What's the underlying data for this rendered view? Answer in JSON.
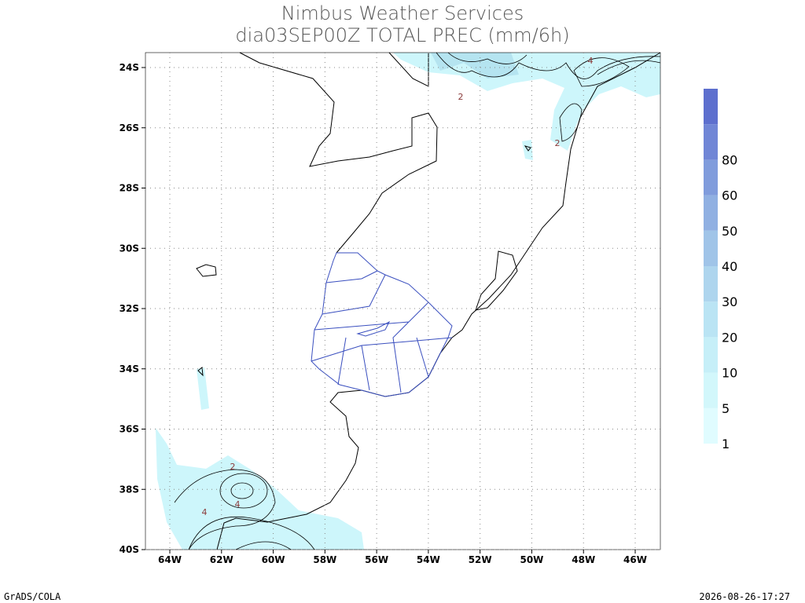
{
  "header": {
    "title": "Nimbus Weather Services",
    "subtitle": "dia03SEP00Z TOTAL PREC (mm/6h)"
  },
  "map": {
    "lat_labels": [
      "24S",
      "26S",
      "28S",
      "30S",
      "32S",
      "34S",
      "36S",
      "38S",
      "40S"
    ],
    "lon_labels": [
      "64W",
      "62W",
      "60W",
      "58W",
      "56W",
      "54W",
      "52W",
      "50W",
      "48W",
      "46W"
    ],
    "contour_labels": [
      "4",
      "2",
      "2",
      "2",
      "4",
      "4"
    ]
  },
  "legend": {
    "labels": [
      "1",
      "5",
      "10",
      "20",
      "30",
      "40",
      "50",
      "60",
      "80"
    ]
  },
  "footer": {
    "left": "GrADS/COLA",
    "right": "2026-08-26-17:27"
  }
}
